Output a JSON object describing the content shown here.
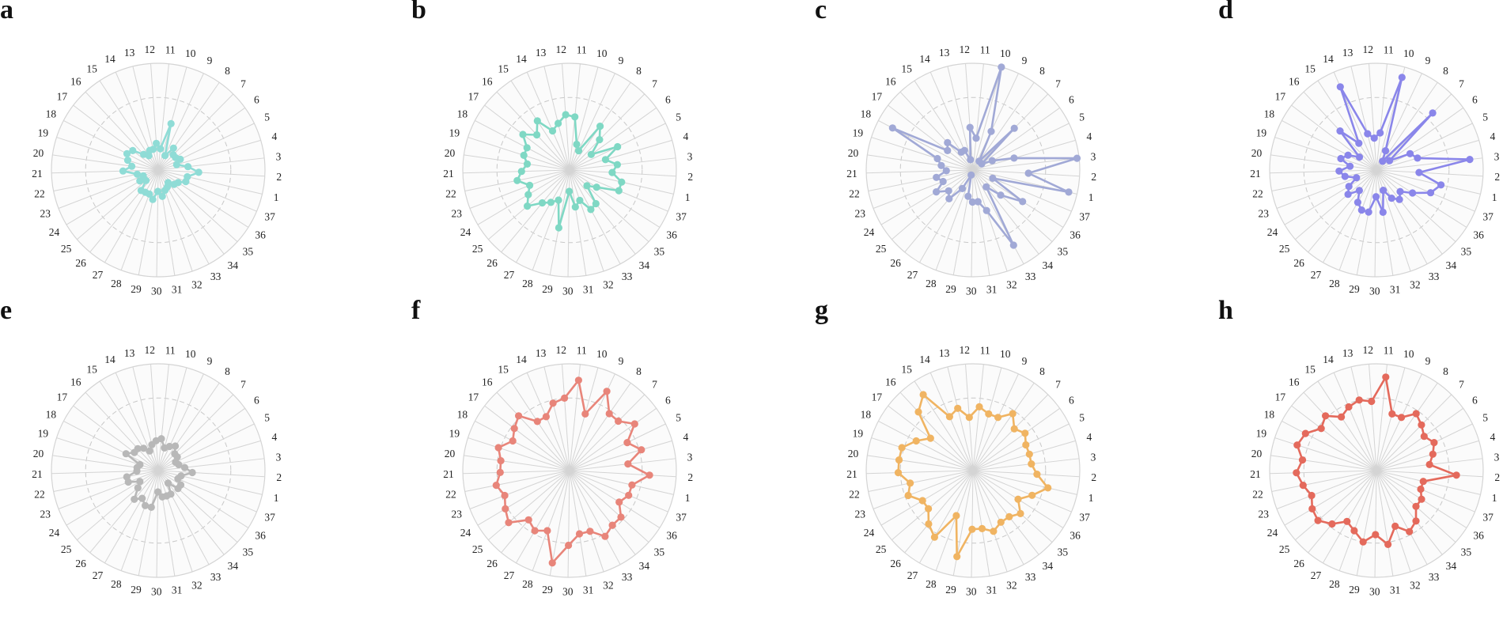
{
  "spoke_labels": [
    "1",
    "2",
    "3",
    "4",
    "5",
    "6",
    "7",
    "8",
    "9",
    "10",
    "11",
    "12",
    "13",
    "14",
    "15",
    "16",
    "17",
    "18",
    "19",
    "20",
    "21",
    "22",
    "23",
    "24",
    "25",
    "26",
    "27",
    "28",
    "29",
    "30",
    "31",
    "32",
    "33",
    "34",
    "35",
    "36",
    "37"
  ],
  "styles": {
    "grid_color": "#d4d4d4",
    "panel_fill": "#fbfbfb",
    "ring_color": "#c8c8c8"
  },
  "chart_data": [
    {
      "type": "radar",
      "panel": "a",
      "color": "#8fdcd6",
      "rmax": 1.0,
      "categories": [
        "1",
        "2",
        "3",
        "4",
        "5",
        "6",
        "7",
        "8",
        "9",
        "10",
        "11",
        "12",
        "13",
        "14",
        "15",
        "16",
        "17",
        "18",
        "19",
        "20",
        "21",
        "22",
        "23",
        "24",
        "25",
        "26",
        "27",
        "28",
        "29",
        "30",
        "31",
        "32",
        "33",
        "34",
        "35",
        "36",
        "37"
      ],
      "values": [
        0.28,
        0.38,
        0.28,
        0.18,
        0.23,
        0.2,
        0.2,
        0.25,
        0.15,
        0.45,
        0.2,
        0.25,
        0.2,
        0.2,
        0.16,
        0.2,
        0.3,
        0.33,
        0.3,
        0.25,
        0.33,
        0.2,
        0.15,
        0.2,
        0.15,
        0.25,
        0.24,
        0.24,
        0.28,
        0.2,
        0.25,
        0.2,
        0.18,
        0.15,
        0.2,
        0.22,
        0.28
      ]
    },
    {
      "type": "radar",
      "panel": "b",
      "color": "#7fd8c4",
      "rmax": 1.0,
      "categories": [
        "1",
        "2",
        "3",
        "4",
        "5",
        "6",
        "7",
        "8",
        "9",
        "10",
        "11",
        "12",
        "13",
        "14",
        "15",
        "16",
        "17",
        "18",
        "19",
        "20",
        "21",
        "22",
        "23",
        "24",
        "25",
        "26",
        "27",
        "28",
        "29",
        "30",
        "31",
        "32",
        "33",
        "34",
        "35",
        "36",
        "37"
      ],
      "values": [
        0.5,
        0.4,
        0.45,
        0.35,
        0.5,
        0.25,
        0.4,
        0.5,
        0.2,
        0.25,
        0.5,
        0.52,
        0.45,
        0.4,
        0.55,
        0.45,
        0.55,
        0.45,
        0.45,
        0.4,
        0.45,
        0.5,
        0.4,
        0.45,
        0.52,
        0.4,
        0.35,
        0.3,
        0.55,
        0.2,
        0.35,
        0.3,
        0.42,
        0.4,
        0.22,
        0.3,
        0.5
      ]
    },
    {
      "type": "radar",
      "panel": "c",
      "color": "#a1a9d6",
      "rmax": 1.0,
      "categories": [
        "1",
        "2",
        "3",
        "4",
        "5",
        "6",
        "7",
        "8",
        "9",
        "10",
        "11",
        "12",
        "13",
        "14",
        "15",
        "16",
        "17",
        "18",
        "19",
        "20",
        "21",
        "22",
        "23",
        "24",
        "25",
        "26",
        "27",
        "28",
        "29",
        "30",
        "31",
        "32",
        "33",
        "34",
        "35",
        "36",
        "37"
      ],
      "values": [
        0.92,
        0.52,
        0.98,
        0.4,
        0.2,
        0.1,
        0.55,
        0.1,
        0.4,
        1.0,
        0.3,
        0.4,
        0.1,
        0.2,
        0.2,
        0.35,
        0.3,
        0.85,
        0.35,
        0.3,
        0.25,
        0.35,
        0.3,
        0.4,
        0.3,
        0.35,
        0.2,
        0.05,
        0.25,
        0.3,
        0.3,
        0.4,
        0.8,
        0.2,
        0.35,
        0.55,
        0.2
      ]
    },
    {
      "type": "radar",
      "panel": "d",
      "color": "#8a86ea",
      "rmax": 1.0,
      "categories": [
        "1",
        "2",
        "3",
        "4",
        "5",
        "6",
        "7",
        "8",
        "9",
        "10",
        "11",
        "12",
        "13",
        "14",
        "15",
        "16",
        "17",
        "18",
        "19",
        "20",
        "21",
        "22",
        "23",
        "24",
        "25",
        "26",
        "27",
        "28",
        "29",
        "30",
        "31",
        "32",
        "33",
        "34",
        "35",
        "36",
        "37"
      ],
      "values": [
        0.62,
        0.4,
        0.88,
        0.4,
        0.35,
        0.15,
        0.75,
        0.1,
        0.2,
        0.9,
        0.35,
        0.3,
        0.35,
        0.85,
        0.3,
        0.5,
        0.2,
        0.3,
        0.35,
        0.25,
        0.35,
        0.3,
        0.2,
        0.3,
        0.35,
        0.25,
        0.35,
        0.4,
        0.4,
        0.25,
        0.4,
        0.2,
        0.3,
        0.35,
        0.3,
        0.4,
        0.55
      ]
    },
    {
      "type": "radar",
      "panel": "e",
      "color": "#b8b8b8",
      "rmax": 1.0,
      "categories": [
        "1",
        "2",
        "3",
        "4",
        "5",
        "6",
        "7",
        "8",
        "9",
        "10",
        "11",
        "12",
        "13",
        "14",
        "15",
        "16",
        "17",
        "18",
        "19",
        "20",
        "21",
        "22",
        "23",
        "24",
        "25",
        "26",
        "27",
        "28",
        "29",
        "30",
        "31",
        "32",
        "33",
        "34",
        "35",
        "36",
        "37"
      ],
      "values": [
        0.22,
        0.32,
        0.25,
        0.2,
        0.18,
        0.22,
        0.22,
        0.28,
        0.25,
        0.22,
        0.3,
        0.28,
        0.25,
        0.2,
        0.25,
        0.28,
        0.28,
        0.34,
        0.18,
        0.2,
        0.2,
        0.3,
        0.3,
        0.2,
        0.25,
        0.35,
        0.3,
        0.35,
        0.35,
        0.2,
        0.25,
        0.25,
        0.25,
        0.15,
        0.25,
        0.25,
        0.2
      ]
    },
    {
      "type": "radar",
      "panel": "f",
      "color": "#e8857a",
      "rmax": 1.0,
      "categories": [
        "1",
        "2",
        "3",
        "4",
        "5",
        "6",
        "7",
        "8",
        "9",
        "10",
        "11",
        "12",
        "13",
        "14",
        "15",
        "16",
        "17",
        "18",
        "19",
        "20",
        "21",
        "22",
        "23",
        "24",
        "25",
        "26",
        "27",
        "28",
        "29",
        "30",
        "31",
        "32",
        "33",
        "34",
        "35",
        "36",
        "37"
      ],
      "values": [
        0.6,
        0.75,
        0.55,
        0.7,
        0.6,
        0.75,
        0.65,
        0.65,
        0.82,
        0.55,
        0.85,
        0.68,
        0.65,
        0.55,
        0.55,
        0.7,
        0.65,
        0.6,
        0.7,
        0.65,
        0.65,
        0.7,
        0.65,
        0.7,
        0.75,
        0.6,
        0.65,
        0.6,
        0.88,
        0.7,
        0.6,
        0.6,
        0.7,
        0.65,
        0.65,
        0.55,
        0.6
      ]
    },
    {
      "type": "radar",
      "panel": "g",
      "color": "#f0b462",
      "rmax": 1.0,
      "categories": [
        "1",
        "2",
        "3",
        "4",
        "5",
        "6",
        "7",
        "8",
        "9",
        "10",
        "11",
        "12",
        "13",
        "14",
        "15",
        "16",
        "17",
        "18",
        "19",
        "20",
        "21",
        "22",
        "23",
        "24",
        "25",
        "26",
        "27",
        "28",
        "29",
        "30",
        "31",
        "32",
        "33",
        "34",
        "35",
        "36",
        "37"
      ],
      "values": [
        0.72,
        0.6,
        0.55,
        0.55,
        0.55,
        0.6,
        0.55,
        0.65,
        0.55,
        0.55,
        0.6,
        0.5,
        0.6,
        0.55,
        0.85,
        0.75,
        0.5,
        0.6,
        0.7,
        0.7,
        0.7,
        0.6,
        0.65,
        0.55,
        0.55,
        0.65,
        0.72,
        0.45,
        0.82,
        0.55,
        0.55,
        0.6,
        0.55,
        0.55,
        0.6,
        0.5,
        0.6
      ]
    },
    {
      "type": "radar",
      "panel": "h",
      "color": "#e46a5c",
      "rmax": 1.0,
      "categories": [
        "1",
        "2",
        "3",
        "4",
        "5",
        "6",
        "7",
        "8",
        "9",
        "10",
        "11",
        "12",
        "13",
        "14",
        "15",
        "16",
        "17",
        "18",
        "19",
        "20",
        "21",
        "22",
        "23",
        "24",
        "25",
        "26",
        "27",
        "28",
        "29",
        "30",
        "31",
        "32",
        "33",
        "34",
        "35",
        "36",
        "37"
      ],
      "values": [
        0.45,
        0.75,
        0.5,
        0.55,
        0.6,
        0.55,
        0.6,
        0.65,
        0.55,
        0.55,
        0.88,
        0.65,
        0.68,
        0.65,
        0.6,
        0.7,
        0.65,
        0.75,
        0.78,
        0.7,
        0.75,
        0.7,
        0.65,
        0.7,
        0.72,
        0.65,
        0.55,
        0.6,
        0.68,
        0.6,
        0.7,
        0.55,
        0.65,
        0.6,
        0.5,
        0.5,
        0.45
      ]
    }
  ]
}
